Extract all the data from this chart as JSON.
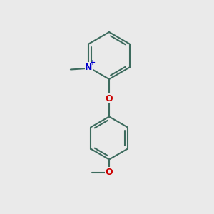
{
  "background_color": "#eaeaea",
  "bond_color": "#3d6b5e",
  "nitrogen_color": "#0000cc",
  "oxygen_color": "#cc0000",
  "line_width": 1.5,
  "figsize": [
    3.0,
    3.0
  ],
  "dpi": 100,
  "xlim": [
    0,
    10
  ],
  "ylim": [
    0,
    10
  ]
}
